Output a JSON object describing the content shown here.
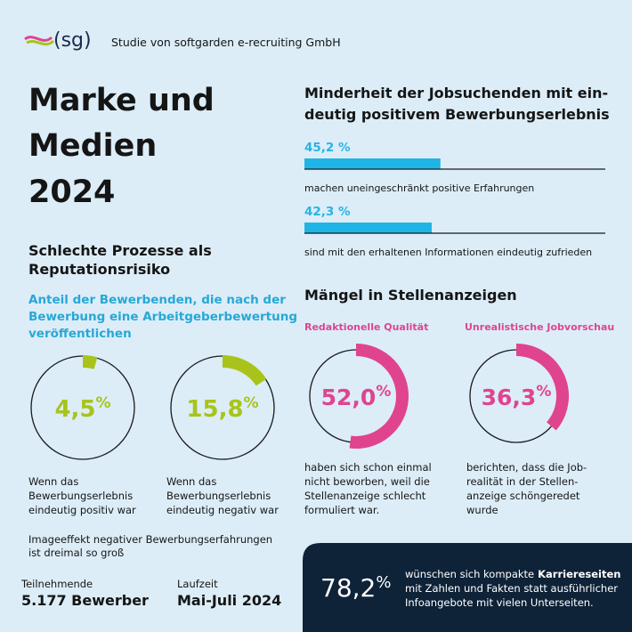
{
  "header": {
    "logo": "(sg)",
    "subtitle": "Studie von softgarden e-recruiting GmbH"
  },
  "title_lines": [
    "Marke und",
    "Medien",
    "2024"
  ],
  "left": {
    "heading_lines": [
      "Schlechte Prozesse als",
      "Reputationsrisiko"
    ],
    "subheading_lines": [
      "Anteil der Bewerbenden, die nach der",
      "Bewerbung eine Arbeitgeberbewertung",
      "veröffentlichen"
    ],
    "donuts": [
      {
        "value": {
          "value": 4.5,
          "label": "4,5"
        },
        "unit": "%",
        "caption_lines": [
          "Wenn das",
          "Bewerbungserlebnis",
          "eindeutig positiv war"
        ]
      },
      {
        "value": {
          "value": 15.8,
          "label": "15,8"
        },
        "unit": "%",
        "caption_lines": [
          "Wenn das",
          "Bewerbungserlebnis",
          "eindeutig negativ war"
        ]
      }
    ],
    "note_lines": [
      "Imageeffekt negativer Bewerbungserfahrungen",
      "ist dreimal so groß"
    ]
  },
  "right": {
    "heading_lines": [
      "Minderheit der Jobsuchenden mit ein-",
      "deutig positivem Bewerbungserlebnis"
    ],
    "bars": [
      {
        "value": {
          "value": 45.2,
          "label": "45,2 %"
        },
        "caption": "machen uneingeschränkt positive Erfahrungen"
      },
      {
        "value": {
          "value": 42.3,
          "label": "42,3 %"
        },
        "caption": "sind mit den erhaltenen Informationen eindeutig zufrieden"
      }
    ],
    "heading2": "Mängel in Stellenanzeigen",
    "donuts": [
      {
        "title": "Redaktionelle Qualität",
        "value": {
          "value": 52.0,
          "label": "52,0"
        },
        "unit": "%",
        "caption_lines": [
          "haben sich schon einmal",
          "nicht beworben, weil die",
          "Stellenanzeige schlecht",
          "formuliert war."
        ]
      },
      {
        "title": "Unrealistische Jobvorschau",
        "value": {
          "value": 36.3,
          "label": "36,3"
        },
        "unit": "%",
        "caption_lines": [
          "berichten, dass die Job-",
          "realität in der Stellen-",
          "anzeige schöngeredet",
          "wurde"
        ]
      }
    ]
  },
  "footer": {
    "stats": [
      {
        "label": "Teilnehmende",
        "value": "5.177 Bewerber"
      },
      {
        "label": "Laufzeit",
        "value": "Mai-Juli 2024"
      }
    ],
    "highlight": {
      "number": "78,2",
      "unit": "%",
      "text_start": "wünschen sich kompakte",
      "text_bold": "Karriereseiten",
      "lines": [
        "mit Zahlen und Fakten statt ausführlicher",
        "Infoangebote mit vielen Unterseiten."
      ]
    }
  }
}
